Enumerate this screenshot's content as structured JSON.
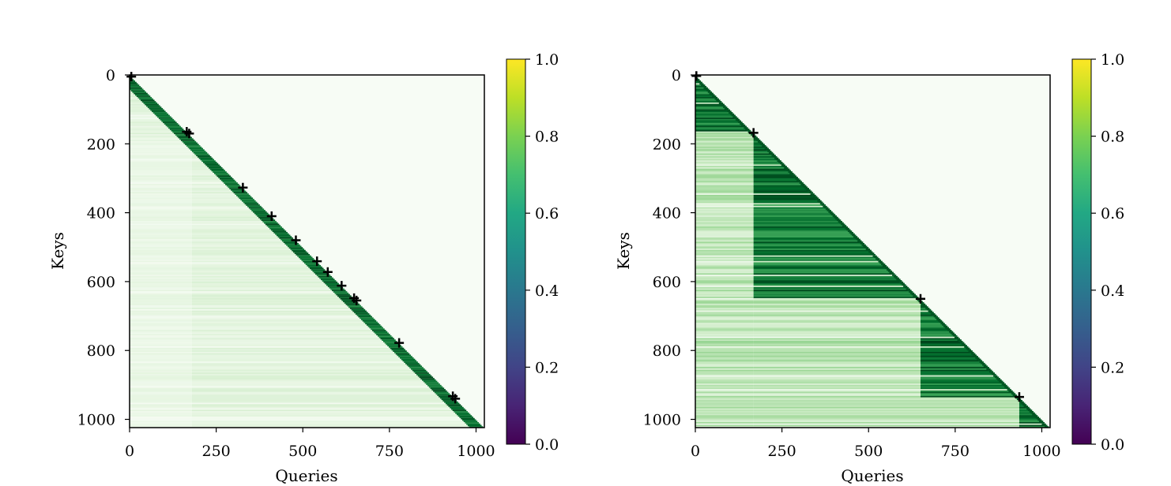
{
  "chart_data": [
    {
      "type": "heatmap",
      "title": "",
      "xlabel": "Queries",
      "ylabel": "Keys",
      "xlim": [
        0,
        1024
      ],
      "ylim": [
        1024,
        0
      ],
      "xticks": [
        0,
        250,
        500,
        750,
        1000
      ],
      "yticks": [
        0,
        200,
        400,
        600,
        800,
        1000
      ],
      "colorscale": "Greens",
      "mask": "lower-triangular (keys >= queries)",
      "band_columns": [
        0,
        180
      ],
      "markers": [
        {
          "x": 5,
          "y": 5
        },
        {
          "x": 165,
          "y": 165
        },
        {
          "x": 172,
          "y": 170
        },
        {
          "x": 327,
          "y": 327
        },
        {
          "x": 410,
          "y": 410
        },
        {
          "x": 480,
          "y": 480
        },
        {
          "x": 541,
          "y": 541
        },
        {
          "x": 572,
          "y": 572
        },
        {
          "x": 612,
          "y": 612
        },
        {
          "x": 648,
          "y": 648
        },
        {
          "x": 655,
          "y": 655
        },
        {
          "x": 778,
          "y": 778
        },
        {
          "x": 933,
          "y": 933
        },
        {
          "x": 940,
          "y": 940
        }
      ]
    },
    {
      "type": "heatmap",
      "title": "",
      "xlabel": "Queries",
      "ylabel": "Keys",
      "xlim": [
        0,
        1024
      ],
      "ylim": [
        1024,
        0
      ],
      "xticks": [
        0,
        250,
        500,
        750,
        1000
      ],
      "yticks": [
        0,
        200,
        400,
        600,
        800,
        1000
      ],
      "colorscale": "Greens",
      "mask": "lower-triangular (keys >= queries)",
      "band_columns": [
        0,
        168,
        650,
        935
      ],
      "markers": [
        {
          "x": 3,
          "y": 3
        },
        {
          "x": 168,
          "y": 168
        },
        {
          "x": 650,
          "y": 650
        },
        {
          "x": 935,
          "y": 935
        }
      ]
    }
  ],
  "colorbars": [
    {
      "ticks": [
        "0.0",
        "0.2",
        "0.4",
        "0.6",
        "0.8",
        "1.0"
      ],
      "colormap": "viridis",
      "range": [
        0,
        1
      ]
    },
    {
      "ticks": [
        "0.0",
        "0.2",
        "0.4",
        "0.6",
        "0.8",
        "1.0"
      ],
      "colormap": "viridis",
      "range": [
        0,
        1
      ]
    }
  ],
  "colors": {
    "background": "#f7fcf5",
    "dark_green": "#00441b",
    "marker": "#000000"
  }
}
